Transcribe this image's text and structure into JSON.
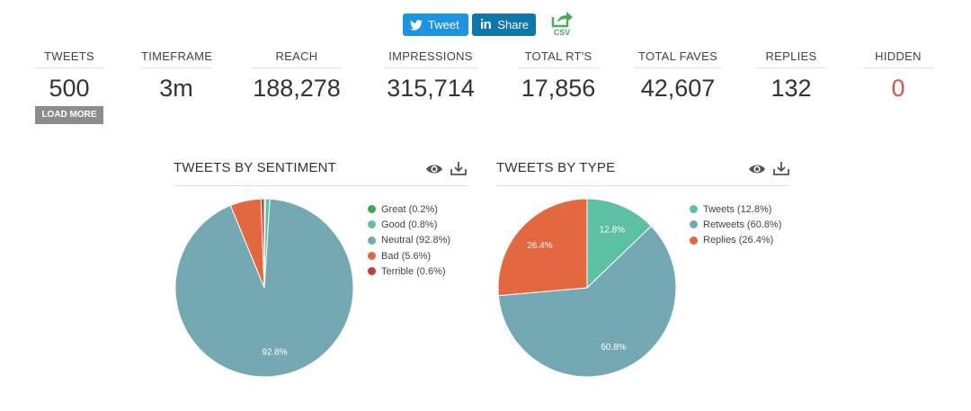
{
  "share": {
    "tweet_label": "Tweet",
    "share_label": "Share",
    "linkedin_glyph": "in",
    "csv_label": "CSV"
  },
  "stats": [
    {
      "label": "TWEETS",
      "value": "500"
    },
    {
      "label": "TIMEFRAME",
      "value": "3m"
    },
    {
      "label": "REACH",
      "value": "188,278"
    },
    {
      "label": "IMPRESSIONS",
      "value": "315,714"
    },
    {
      "label": "TOTAL RT'S",
      "value": "17,856"
    },
    {
      "label": "TOTAL FAVES",
      "value": "42,607"
    },
    {
      "label": "REPLIES",
      "value": "132"
    },
    {
      "label": "HIDDEN",
      "value": "0"
    }
  ],
  "load_more_label": "LOAD MORE",
  "colors": {
    "twitter_blue": "#1b95e0",
    "linkedin_blue": "#0e76a8",
    "csv_green": "#4caa5a",
    "hidden_red": "#d9534f"
  },
  "chart_data": [
    {
      "type": "pie",
      "title": "TWEETS BY SENTIMENT",
      "legend_position": "right",
      "slices": [
        {
          "label": "Great (0.2%)",
          "value": 0.2,
          "color": "#3aa655",
          "data_label": ""
        },
        {
          "label": "Good (0.8%)",
          "value": 0.8,
          "color": "#5cc3a0",
          "data_label": ""
        },
        {
          "label": "Neutral (92.8%)",
          "value": 92.8,
          "color": "#74a8b2",
          "data_label": "92.8%"
        },
        {
          "label": "Bad (5.6%)",
          "value": 5.6,
          "color": "#e3683f",
          "data_label": ""
        },
        {
          "label": "Terrible (0.6%)",
          "value": 0.6,
          "color": "#cc3a3a",
          "data_label": ""
        }
      ]
    },
    {
      "type": "pie",
      "title": "TWEETS BY TYPE",
      "legend_position": "right",
      "slices": [
        {
          "label": "Tweets (12.8%)",
          "value": 12.8,
          "color": "#5cc0a2",
          "data_label": "12.8%"
        },
        {
          "label": "Retweets (60.8%)",
          "value": 60.8,
          "color": "#74a8b2",
          "data_label": "60.8%"
        },
        {
          "label": "Replies (26.4%)",
          "value": 26.4,
          "color": "#e3683f",
          "data_label": "26.4%"
        }
      ]
    }
  ]
}
